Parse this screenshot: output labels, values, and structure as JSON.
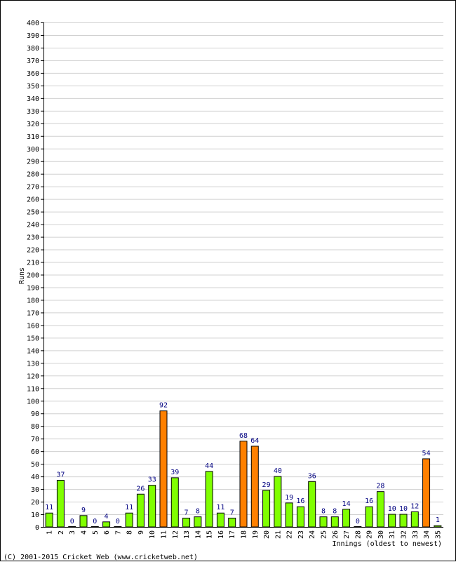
{
  "chart_data": {
    "type": "bar",
    "xlabel": "Innings (oldest to newest)",
    "ylabel": "Runs",
    "ylim": [
      0,
      400
    ],
    "ytick_step": 10,
    "grid": true,
    "categories": [
      "1",
      "2",
      "3",
      "4",
      "5",
      "6",
      "7",
      "8",
      "9",
      "10",
      "11",
      "12",
      "13",
      "14",
      "15",
      "16",
      "17",
      "18",
      "19",
      "20",
      "21",
      "22",
      "23",
      "24",
      "25",
      "26",
      "27",
      "28",
      "29",
      "30",
      "31",
      "32",
      "33",
      "34",
      "35"
    ],
    "values": [
      11,
      37,
      0,
      9,
      0,
      4,
      0,
      11,
      26,
      33,
      92,
      39,
      7,
      8,
      44,
      11,
      7,
      68,
      64,
      29,
      40,
      19,
      16,
      36,
      8,
      8,
      14,
      0,
      16,
      28,
      10,
      10,
      12,
      54,
      1
    ],
    "highlight_indices": [
      10,
      17,
      18,
      33
    ],
    "colors": {
      "bar": "#80ff00",
      "highlight": "#ff8000",
      "bar_stroke": "#000000",
      "grid": "#d0d0d0",
      "value_label": "#000080"
    }
  },
  "footer": {
    "copyright": "(C) 2001-2015 Cricket Web (www.cricketweb.net)"
  }
}
